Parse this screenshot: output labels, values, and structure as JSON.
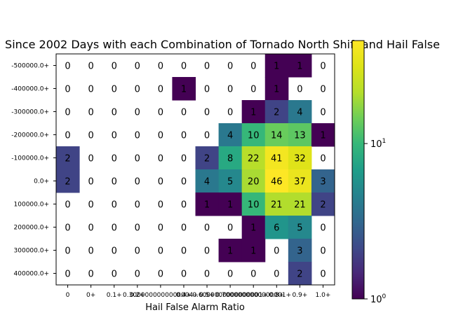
{
  "chart_data": {
    "type": "heatmap",
    "title": "Since 2002 Days with each Combination of Tornado North Shift and Hail False",
    "xlabel": "Hail False Alarm Ratio",
    "ylabel": "",
    "x_tick_labels": [
      "0",
      "0+",
      "0.1+",
      "0.2+",
      "0.3000000000000004+",
      "0.4+",
      "0.5+",
      "0.6000000000000001+",
      "0.7000000000000001+",
      "0.8+",
      "0.9+",
      "1.0+"
    ],
    "y_tick_labels": [
      "-500000.0+",
      "-400000.0+",
      "-300000.0+",
      "-200000.0+",
      "-100000.0+",
      "0.0+",
      "100000.0+",
      "200000.0+",
      "300000.0+",
      "400000.0+"
    ],
    "values": [
      [
        0,
        0,
        0,
        0,
        0,
        0,
        0,
        0,
        0,
        1,
        1,
        0
      ],
      [
        0,
        0,
        0,
        0,
        0,
        1,
        0,
        0,
        0,
        1,
        0,
        0
      ],
      [
        0,
        0,
        0,
        0,
        0,
        0,
        0,
        0,
        1,
        2,
        4,
        0
      ],
      [
        0,
        0,
        0,
        0,
        0,
        0,
        0,
        4,
        10,
        14,
        13,
        1
      ],
      [
        2,
        0,
        0,
        0,
        0,
        0,
        2,
        8,
        22,
        41,
        32,
        0
      ],
      [
        2,
        0,
        0,
        0,
        0,
        0,
        4,
        5,
        20,
        46,
        37,
        3
      ],
      [
        0,
        0,
        0,
        0,
        0,
        0,
        1,
        1,
        10,
        21,
        21,
        2
      ],
      [
        0,
        0,
        0,
        0,
        0,
        0,
        0,
        0,
        1,
        6,
        5,
        0
      ],
      [
        0,
        0,
        0,
        0,
        0,
        0,
        0,
        1,
        1,
        0,
        3,
        0
      ],
      [
        0,
        0,
        0,
        0,
        0,
        0,
        0,
        0,
        0,
        0,
        2,
        0
      ]
    ],
    "colorscale": "viridis",
    "color_scale_type": "log",
    "colorbar_range": [
      1,
      46
    ],
    "colorbar_ticks": [
      {
        "base": "10",
        "exp": "0"
      },
      {
        "base": "10",
        "exp": "1"
      }
    ],
    "zero_cells_color": "#ffffff",
    "grid": false
  }
}
